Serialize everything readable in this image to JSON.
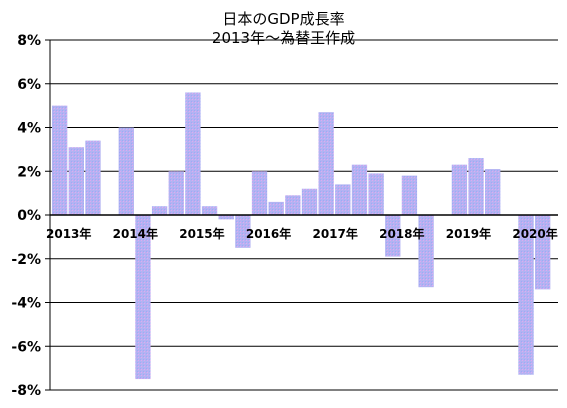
{
  "chart_data": {
    "type": "bar",
    "title": "日本のGDP成長率",
    "subtitle": "2013年～為替王作成",
    "xlabel": "",
    "ylabel": "",
    "ylim": [
      -8,
      8
    ],
    "y_tick_labels": [
      "8%",
      "6%",
      "4%",
      "2%",
      "0%",
      "-2%",
      "-4%",
      "-6%",
      "-8%"
    ],
    "y_tick_values": [
      8,
      6,
      4,
      2,
      0,
      -2,
      -4,
      -6,
      -8
    ],
    "year_labels": [
      "2013年",
      "2014年",
      "2015年",
      "2016年",
      "2017年",
      "2018年",
      "2019年",
      "2020年"
    ],
    "grid": "horizontal",
    "legend": "none",
    "categories": [
      "2013Q1",
      "2013Q2",
      "2013Q3",
      "2013Q4",
      "2014Q1",
      "2014Q2",
      "2014Q3",
      "2014Q4",
      "2015Q1",
      "2015Q2",
      "2015Q3",
      "2015Q4",
      "2016Q1",
      "2016Q2",
      "2016Q3",
      "2016Q4",
      "2017Q1",
      "2017Q2",
      "2017Q3",
      "2017Q4",
      "2018Q1",
      "2018Q2",
      "2018Q3",
      "2018Q4",
      "2019Q1",
      "2019Q2",
      "2019Q3",
      "2019Q4",
      "2020Q1",
      "2020Q2"
    ],
    "values": [
      5.0,
      3.1,
      3.4,
      null,
      4.0,
      -7.5,
      0.4,
      2.0,
      5.6,
      0.4,
      -0.2,
      -1.5,
      2.0,
      0.6,
      0.9,
      1.2,
      4.7,
      1.4,
      2.3,
      1.9,
      -1.9,
      1.8,
      -3.3,
      null,
      2.3,
      2.6,
      2.1,
      null,
      -7.3,
      -3.4
    ],
    "colors": {
      "bar_fill": "#b3b3f2",
      "bar_stripe": "#d9a0f0",
      "axis": "#000000",
      "grid": "#000000"
    }
  }
}
